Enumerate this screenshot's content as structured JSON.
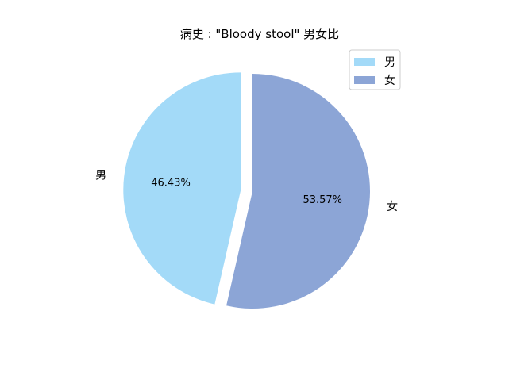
{
  "chart_data": {
    "type": "pie",
    "title": "病史 : \"Bloody stool\" 男女比",
    "slices": [
      {
        "label": "男",
        "value": 46.43,
        "pct_label": "46.43%",
        "color": "#a3daf8",
        "exploded": true
      },
      {
        "label": "女",
        "value": 53.57,
        "pct_label": "53.57%",
        "color": "#8ca5d6",
        "exploded": false
      }
    ],
    "legend": {
      "placement": "top-right",
      "entries": [
        {
          "label": "男",
          "color": "#a3daf8"
        },
        {
          "label": "女",
          "color": "#8ca5d6"
        }
      ]
    }
  }
}
